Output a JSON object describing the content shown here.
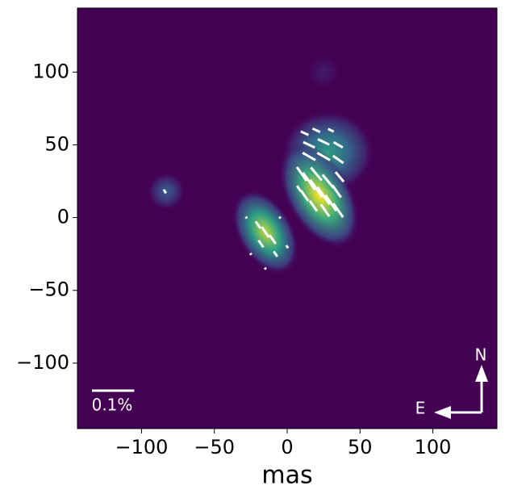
{
  "chart_data": {
    "type": "image",
    "colormap": "viridis",
    "background_color": "#440154",
    "xlabel": "mas",
    "xlim": [
      -144,
      144
    ],
    "ylim": [
      -145,
      144
    ],
    "xticks": [
      {
        "value": -100,
        "label": "−100"
      },
      {
        "value": -50,
        "label": "−50"
      },
      0,
      50,
      100
    ],
    "yticks": [
      {
        "value": -100,
        "label": "−100"
      },
      {
        "value": -50,
        "label": "−50"
      },
      0,
      50,
      100
    ],
    "blobs": [
      {
        "x": 28,
        "y": 45,
        "rx": 20,
        "ry": 18,
        "angle": 0,
        "peak": 0.55
      },
      {
        "x": 22,
        "y": 15,
        "rx": 14,
        "ry": 25,
        "angle": -30,
        "peak": 1
      },
      {
        "x": -15,
        "y": -10,
        "rx": 12,
        "ry": 20,
        "angle": -30,
        "peak": 0.9
      },
      {
        "x": -83,
        "y": 18,
        "rx": 8,
        "ry": 8,
        "angle": 0,
        "peak": 0.3
      },
      {
        "x": 25,
        "y": 100,
        "rx": 7,
        "ry": 7,
        "angle": 0,
        "peak": 0.08
      }
    ],
    "vector_color": "#ffffff",
    "vectors": [
      {
        "x": 10,
        "y": 30,
        "p": 0.04,
        "angle": -55
      },
      {
        "x": 15,
        "y": 25,
        "p": 0.05,
        "angle": -55
      },
      {
        "x": 20,
        "y": 20,
        "p": 0.05,
        "angle": -55
      },
      {
        "x": 25,
        "y": 15,
        "p": 0.05,
        "angle": -55
      },
      {
        "x": 30,
        "y": 10,
        "p": 0.045,
        "angle": -55
      },
      {
        "x": 35,
        "y": 5,
        "p": 0.04,
        "angle": -55
      },
      {
        "x": 20,
        "y": 30,
        "p": 0.04,
        "angle": -50
      },
      {
        "x": 28,
        "y": 25,
        "p": 0.04,
        "angle": -50
      },
      {
        "x": 34,
        "y": 18,
        "p": 0.035,
        "angle": -55
      },
      {
        "x": 12,
        "y": 15,
        "p": 0.03,
        "angle": -55
      },
      {
        "x": 18,
        "y": 8,
        "p": 0.03,
        "angle": -55
      },
      {
        "x": 26,
        "y": 5,
        "p": 0.035,
        "angle": -55
      },
      {
        "x": 36,
        "y": 28,
        "p": 0.03,
        "angle": -50
      },
      {
        "x": 8,
        "y": 20,
        "p": 0.015,
        "angle": -55
      },
      {
        "x": 12,
        "y": 58,
        "p": 0.02,
        "angle": -25
      },
      {
        "x": 20,
        "y": 60,
        "p": 0.02,
        "angle": -25
      },
      {
        "x": 30,
        "y": 60,
        "p": 0.015,
        "angle": -25
      },
      {
        "x": 15,
        "y": 50,
        "p": 0.03,
        "angle": -25
      },
      {
        "x": 25,
        "y": 52,
        "p": 0.03,
        "angle": -25
      },
      {
        "x": 35,
        "y": 50,
        "p": 0.025,
        "angle": -30
      },
      {
        "x": 15,
        "y": 42,
        "p": 0.035,
        "angle": -30
      },
      {
        "x": 25,
        "y": 42,
        "p": 0.035,
        "angle": -30
      },
      {
        "x": 35,
        "y": 40,
        "p": 0.03,
        "angle": -35
      },
      {
        "x": -20,
        "y": -5,
        "p": 0.02,
        "angle": -55
      },
      {
        "x": -15,
        "y": -10,
        "p": 0.03,
        "angle": -55
      },
      {
        "x": -10,
        "y": -15,
        "p": 0.025,
        "angle": -55
      },
      {
        "x": -18,
        "y": -18,
        "p": 0.02,
        "angle": -55
      },
      {
        "x": -8,
        "y": -25,
        "p": 0.015,
        "angle": -55
      },
      {
        "x": -25,
        "y": -25,
        "p": 0.005,
        "angle": -55
      },
      {
        "x": -28,
        "y": 0,
        "p": 0.005,
        "angle": -55
      },
      {
        "x": -5,
        "y": 0,
        "p": 0.005,
        "angle": -55
      },
      {
        "x": -15,
        "y": -35,
        "p": 0.005,
        "angle": -55
      },
      {
        "x": 0,
        "y": -20,
        "p": 0.008,
        "angle": -55
      },
      {
        "x": -84,
        "y": 18,
        "p": 0.01,
        "angle": -60
      }
    ],
    "vector_scale": {
      "value": 0.1,
      "label": "0.1%",
      "length_mas": 29
    },
    "compass": {
      "north": "N",
      "east": "E"
    }
  }
}
